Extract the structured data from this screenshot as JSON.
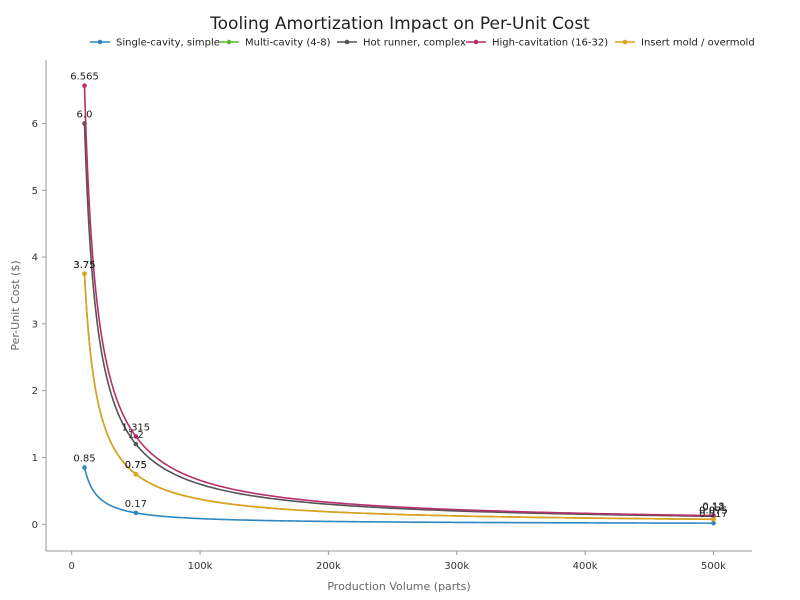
{
  "chart_data": {
    "type": "line",
    "title": "Tooling Amortization Impact on Per-Unit Cost",
    "xlabel": "Production Volume (parts)",
    "ylabel": "Per-Unit Cost ($)",
    "xlim": [
      -20000,
      530000
    ],
    "ylim": [
      -0.4,
      6.95
    ],
    "x_ticks": [
      0,
      100000,
      200000,
      300000,
      400000,
      500000
    ],
    "x_tick_labels": [
      "0",
      "100k",
      "200k",
      "300k",
      "400k",
      "500k"
    ],
    "y_ticks": [
      0,
      1,
      2,
      3,
      4,
      5,
      6
    ],
    "y_tick_labels": [
      "0",
      "1",
      "2",
      "3",
      "4",
      "5",
      "6"
    ],
    "x": [
      10000,
      50000,
      500000
    ],
    "legend_position": "top",
    "grid": false,
    "series": [
      {
        "name": "Single-cavity, simple",
        "color": "#2e86c1",
        "values": [
          0.85,
          0.17,
          0.017
        ],
        "labels": [
          "0.85",
          "0.17",
          "0.017"
        ]
      },
      {
        "name": "Multi-cavity (4-8)",
        "color": "#5cb82e",
        "values": [
          3.75,
          0.75,
          0.075
        ],
        "labels": [
          "3.75",
          "0.75",
          "0.075"
        ]
      },
      {
        "name": "Hot runner, complex",
        "color": "#555555",
        "values": [
          6.0,
          1.2,
          0.12
        ],
        "labels": [
          "6.0",
          "1.2",
          "0.12"
        ]
      },
      {
        "name": "High-cavitation (16-32)",
        "color": "#b5306b",
        "values": [
          6.565,
          1.315,
          0.13
        ],
        "labels": [
          "6.565",
          "1.315",
          "0.13"
        ]
      },
      {
        "name": "Insert mold / overmold",
        "color": "#e0a020",
        "values": [
          3.75,
          0.75,
          0.075
        ],
        "labels": [
          "3.75",
          "0.75",
          "0.075"
        ]
      }
    ]
  }
}
